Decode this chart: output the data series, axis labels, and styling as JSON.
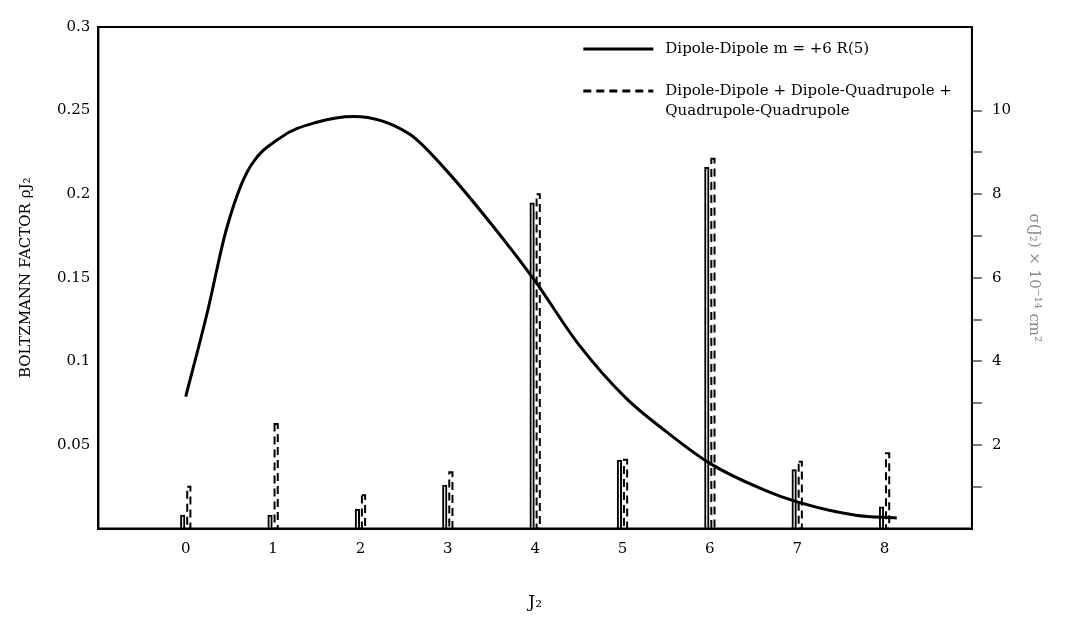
{
  "chart_data": {
    "type": "bar",
    "xlabel": "J₂",
    "ylabel": "BOLTZMANN FACTOR ρJ₂",
    "y2label": "σ(J₂) × 10⁻¹⁴ cm²",
    "x": [
      0,
      1,
      2,
      3,
      4,
      5,
      6,
      7,
      8
    ],
    "xlim": [
      -1,
      9
    ],
    "xticks": [
      0,
      1,
      2,
      3,
      4,
      5,
      6,
      7,
      8
    ],
    "ylim": [
      0,
      0.3
    ],
    "yticks": [
      0.05,
      0.1,
      0.15,
      0.2,
      0.25,
      0.3
    ],
    "y2lim": [
      0,
      12
    ],
    "y2ticks": [
      {
        "value": 1,
        "label": null
      },
      2,
      {
        "value": 3,
        "label": null
      },
      4,
      {
        "value": 5,
        "label": null
      },
      6,
      {
        "value": 7,
        "label": null
      },
      8,
      {
        "value": 9,
        "label": null
      },
      10
    ],
    "legend": "top right",
    "grid": false,
    "series": [
      {
        "type": "line",
        "color": "#000000",
        "line_style": "solid",
        "marker": "none",
        "x": [
          0,
          0.25,
          0.46,
          0.7,
          1.09,
          1.5,
          1.92,
          2.56,
          2.97,
          3.5,
          4.0,
          4.5,
          5.04,
          5.5,
          6.0,
          6.58,
          7.0,
          7.67,
          8.14
        ],
        "values": [
          0.079,
          0.13,
          0.178,
          0.213,
          0.234,
          0.243,
          0.2465,
          0.236,
          0.215,
          0.182,
          0.148,
          0.11,
          0.078,
          0.058,
          0.039,
          0.024,
          0.016,
          0.008,
          0.0064
        ]
      },
      {
        "name": "Dipole-Dipole m = +6 R(5)",
        "axis": "y2",
        "color": "#000000",
        "line_style": "solid",
        "values": [
          0.33,
          0.33,
          0.47,
          1.05,
          7.8,
          1.65,
          8.65,
          1.42,
          0.53
        ]
      },
      {
        "name": "Dipole-Dipole + Dipole-Quadrupole + Quadrupole-Quadrupole",
        "axis": "y2",
        "color": "#000000",
        "line_style": "dashed",
        "values": [
          1.0,
          2.5,
          0.8,
          1.35,
          8.0,
          1.65,
          8.85,
          1.6,
          1.8
        ]
      }
    ]
  }
}
